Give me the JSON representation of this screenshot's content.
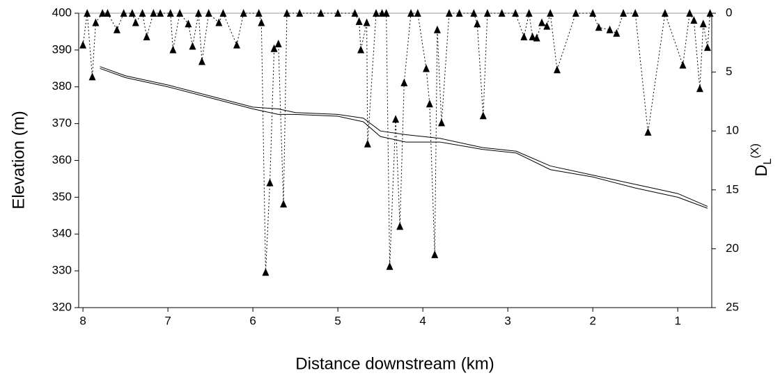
{
  "chart_data": {
    "type": "line",
    "x_label": "Distance downstream (km)",
    "y_label": "Elevation (m)",
    "y2_label": "D",
    "y2_label_sub": "L",
    "y2_label_sup": "(X)",
    "xlim": [
      8.05,
      0.6
    ],
    "xticks": [
      8,
      7,
      6,
      5,
      4,
      3,
      2,
      1
    ],
    "ylim": [
      320,
      400
    ],
    "yticks": [
      320,
      330,
      340,
      350,
      360,
      370,
      380,
      390,
      400
    ],
    "y2lim": [
      25,
      0
    ],
    "y2ticks": [
      0,
      5,
      10,
      15,
      20,
      25
    ],
    "series": [
      {
        "color": "#000000",
        "style": "solid",
        "x": [
          7.8,
          7.5,
          7.0,
          6.5,
          6.0,
          5.7,
          5.5,
          5.0,
          4.7,
          4.5,
          4.2,
          3.8,
          3.3,
          2.9,
          2.5,
          2.0,
          1.5,
          1.0,
          0.65
        ],
        "values": [
          385.5,
          383,
          380.5,
          377.5,
          374.5,
          374,
          373,
          372.5,
          371.5,
          368,
          367,
          366,
          363.5,
          362.5,
          358.5,
          356,
          353.5,
          351,
          347.5
        ]
      },
      {
        "color": "#000000",
        "style": "solid",
        "x": [
          7.8,
          7.5,
          7.0,
          6.5,
          6.0,
          5.7,
          5.5,
          5.0,
          4.7,
          4.5,
          4.2,
          3.8,
          3.3,
          2.9,
          2.5,
          2.0,
          1.5,
          1.0,
          0.65
        ],
        "values": [
          385,
          382.5,
          380,
          377,
          374,
          372.5,
          372.5,
          372,
          370.5,
          366.5,
          365,
          365,
          363,
          362,
          357.5,
          355.5,
          352.5,
          350,
          347
        ]
      },
      {
        "color": "#000000",
        "style": "dotted",
        "marker": "triangle",
        "axis": "y2",
        "x": [
          8.0,
          7.95,
          7.89,
          7.85,
          7.77,
          7.71,
          7.6,
          7.52,
          7.42,
          7.38,
          7.3,
          7.25,
          7.17,
          7.09,
          6.97,
          6.94,
          6.86,
          6.76,
          6.71,
          6.64,
          6.6,
          6.52,
          6.4,
          6.35,
          6.19,
          6.11,
          5.93,
          5.9,
          5.85,
          5.8,
          5.75,
          5.7,
          5.64,
          5.6,
          5.45,
          5.2,
          5.0,
          4.8,
          4.75,
          4.73,
          4.66,
          4.65,
          4.55,
          4.48,
          4.43,
          4.39,
          4.32,
          4.27,
          4.22,
          4.14,
          4.06,
          3.96,
          3.92,
          3.86,
          3.83,
          3.78,
          3.69,
          3.57,
          3.4,
          3.36,
          3.29,
          3.24,
          3.07,
          2.91,
          2.81,
          2.75,
          2.71,
          2.66,
          2.6,
          2.54,
          2.5,
          2.42,
          2.2,
          2.0,
          1.93,
          1.8,
          1.72,
          1.64,
          1.5,
          1.35,
          1.15,
          0.94,
          0.86,
          0.81,
          0.74,
          0.7,
          0.65,
          0.62
        ],
        "values": [
          2.7,
          0,
          5.4,
          0.8,
          0,
          0,
          1.4,
          0,
          0,
          0.8,
          0,
          2.0,
          0,
          0,
          0,
          3.1,
          0,
          0.9,
          2.8,
          0,
          4.1,
          0,
          0.8,
          0,
          2.7,
          0,
          0,
          0.8,
          22,
          14.4,
          3.0,
          2.6,
          16.2,
          0,
          0,
          0,
          0,
          0,
          0.7,
          3.1,
          0.8,
          11.1,
          0,
          0,
          0,
          21.5,
          9.0,
          18.1,
          5.9,
          0,
          0,
          4.7,
          7.7,
          20.5,
          1.4,
          9.3,
          0,
          0,
          0,
          0.9,
          8.7,
          0,
          0,
          0,
          2.0,
          0,
          2.0,
          2.1,
          0.8,
          1.1,
          0,
          4.8,
          0,
          0,
          1.2,
          1.4,
          1.7,
          0,
          0,
          10.1,
          0,
          4.4,
          0,
          0.6,
          6.4,
          0.9,
          2.9,
          0
        ]
      }
    ]
  }
}
